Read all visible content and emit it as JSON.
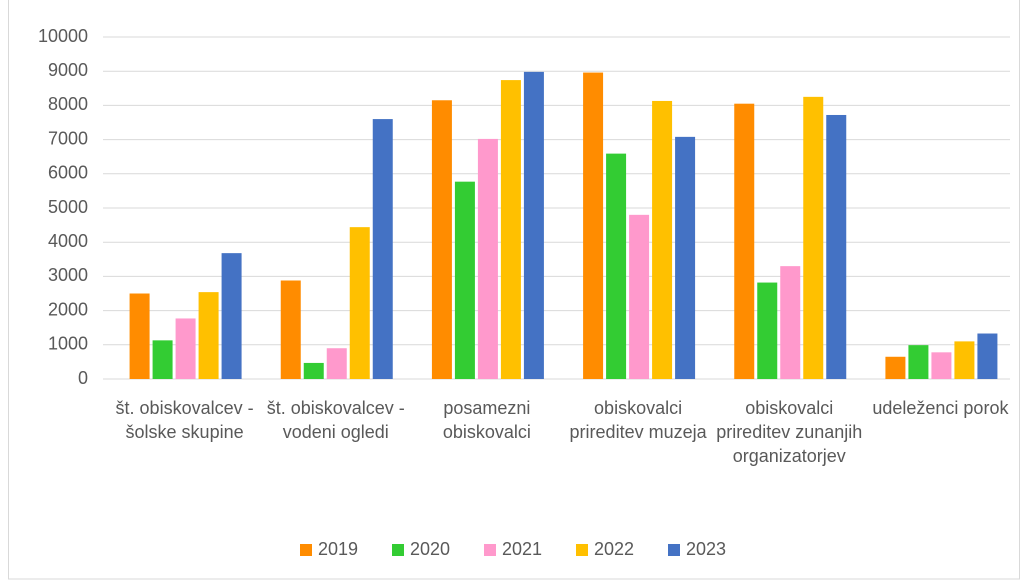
{
  "chart_data": {
    "type": "bar",
    "categories": [
      "št. obiskovalcev - šolske skupine",
      "št. obiskovalcev - vodeni ogledi",
      "posamezni obiskovalci",
      "obiskovalci prireditev muzeja",
      "obiskovalci prireditev zunanjih organizatorjev",
      "udeleženci porok"
    ],
    "series": [
      {
        "name": "2019",
        "color": "#ff8c00",
        "values": [
          2500,
          2880,
          8150,
          8960,
          8050,
          650
        ]
      },
      {
        "name": "2020",
        "color": "#33cc33",
        "values": [
          1130,
          470,
          5770,
          6590,
          2820,
          990
        ]
      },
      {
        "name": "2021",
        "color": "#ff99cc",
        "values": [
          1770,
          900,
          7020,
          4800,
          3300,
          780
        ]
      },
      {
        "name": "2022",
        "color": "#ffc000",
        "values": [
          2540,
          4440,
          8740,
          8130,
          8250,
          1100
        ]
      },
      {
        "name": "2023",
        "color": "#4472c4",
        "values": [
          3680,
          7600,
          8980,
          7080,
          7720,
          1330
        ]
      }
    ],
    "ylim": [
      0,
      10000
    ],
    "yticks": [
      0,
      1000,
      2000,
      3000,
      4000,
      5000,
      6000,
      7000,
      8000,
      9000,
      10000
    ],
    "grid": true,
    "legend": "bottom"
  }
}
